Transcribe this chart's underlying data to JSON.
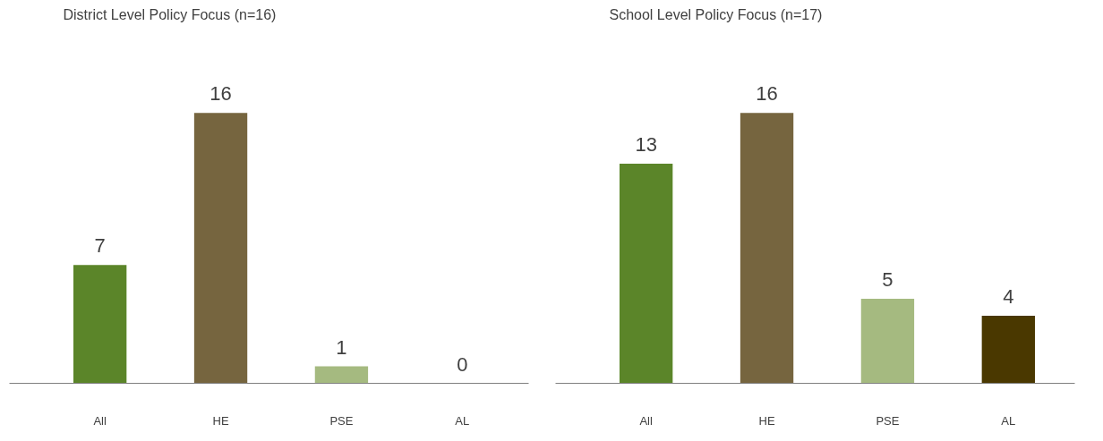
{
  "chart_data": [
    {
      "type": "bar",
      "title": "District Level Policy Focus (n=16)",
      "categories": [
        "All",
        "HE",
        "PSE",
        "AL"
      ],
      "values": [
        7,
        16,
        1,
        0
      ],
      "colors": [
        "#5b8529",
        "#76653f",
        "#a5ba80",
        "#4a3800"
      ],
      "data_labels": true
    },
    {
      "type": "bar",
      "title": "School Level Policy Focus (n=17)",
      "categories": [
        "All",
        "HE",
        "PSE",
        "AL"
      ],
      "values": [
        13,
        16,
        5,
        4
      ],
      "colors": [
        "#5b8529",
        "#76653f",
        "#a5ba80",
        "#4a3800"
      ],
      "data_labels": true
    }
  ]
}
